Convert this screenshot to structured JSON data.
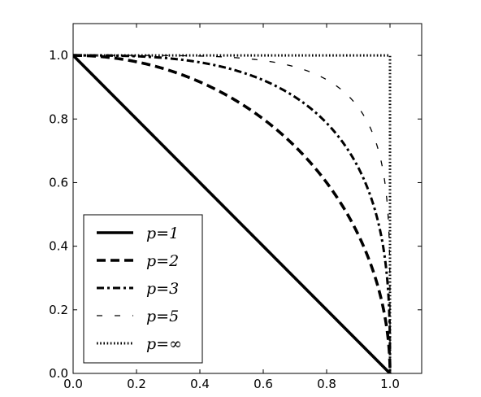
{
  "chart_data": {
    "type": "line",
    "title": "",
    "xlabel": "",
    "ylabel": "",
    "xlim": [
      0.0,
      1.1
    ],
    "ylim": [
      0.0,
      1.1
    ],
    "xticks": [
      0.0,
      0.2,
      0.4,
      0.6,
      0.8,
      1.0
    ],
    "yticks": [
      0.0,
      0.2,
      0.4,
      0.6,
      0.8,
      1.0
    ],
    "xtick_labels": [
      "0.0",
      "0.2",
      "0.4",
      "0.6",
      "0.8",
      "1.0"
    ],
    "ytick_labels": [
      "0.0",
      "0.2",
      "0.4",
      "0.6",
      "0.8",
      "1.0"
    ],
    "grid": false,
    "legend_position": "lower-left",
    "series": [
      {
        "name": "p=1",
        "p": 1,
        "style": "solid",
        "color": "#000000",
        "x": [
          0.0,
          0.2,
          0.4,
          0.6,
          0.8,
          1.0
        ],
        "y": [
          1.0,
          0.8,
          0.6,
          0.4,
          0.2,
          0.0
        ]
      },
      {
        "name": "p=2",
        "p": 2,
        "style": "dashed",
        "color": "#000000",
        "x": [
          0.0,
          0.2,
          0.4,
          0.6,
          0.8,
          0.9,
          1.0
        ],
        "y": [
          1.0,
          0.98,
          0.917,
          0.8,
          0.6,
          0.436,
          0.0
        ]
      },
      {
        "name": "p=3",
        "p": 3,
        "style": "dashdot",
        "color": "#000000",
        "x": [
          0.0,
          0.2,
          0.4,
          0.6,
          0.8,
          0.9,
          1.0
        ],
        "y": [
          1.0,
          0.997,
          0.978,
          0.924,
          0.769,
          0.644,
          0.0
        ]
      },
      {
        "name": "p=5",
        "p": 5,
        "style": "loosely-dashed",
        "color": "#000000",
        "x": [
          0.0,
          0.2,
          0.4,
          0.6,
          0.8,
          0.9,
          1.0
        ],
        "y": [
          1.0,
          1.0,
          0.998,
          0.984,
          0.9,
          0.782,
          0.0
        ]
      },
      {
        "name": "p=∞",
        "p": "inf",
        "style": "dotted",
        "color": "#000000",
        "x": [
          0.0,
          1.0,
          1.0
        ],
        "y": [
          1.0,
          1.0,
          0.0
        ]
      }
    ],
    "legend_entries": [
      {
        "label": "p=1",
        "style": "solid"
      },
      {
        "label": "p=2",
        "style": "dashed"
      },
      {
        "label": "p=3",
        "style": "dashdot"
      },
      {
        "label": "p=5",
        "style": "loosely-dashed"
      },
      {
        "label": "p=∞",
        "style": "dotted"
      }
    ]
  }
}
